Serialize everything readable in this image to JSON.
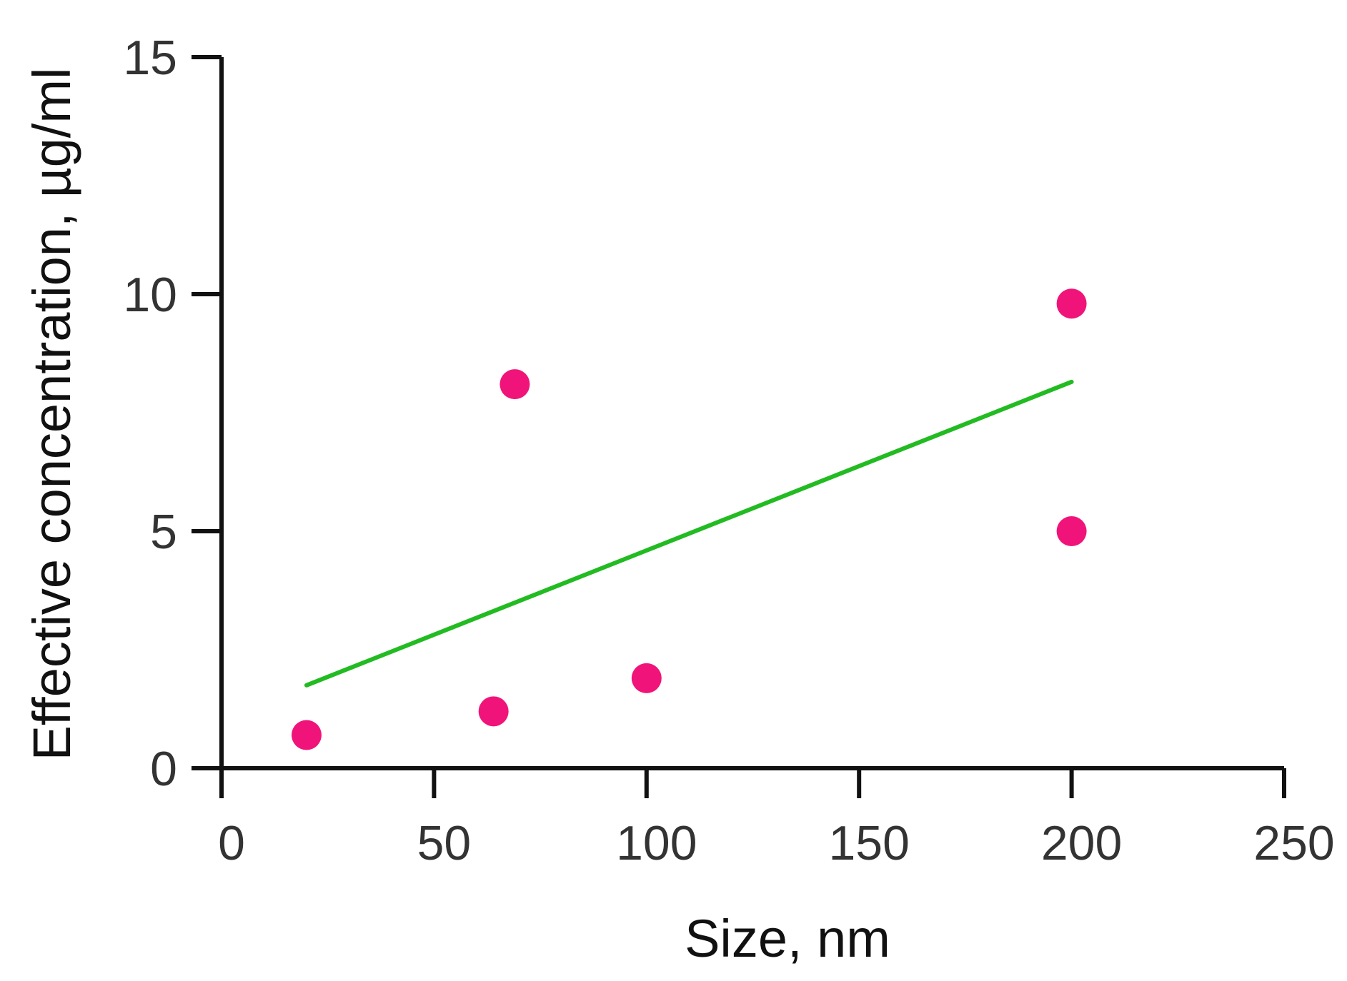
{
  "chart_data": {
    "type": "scatter",
    "title": "",
    "xlabel": "Size, nm",
    "ylabel": "Effective concentration, µg/ml",
    "xlim": [
      0,
      250
    ],
    "ylim": [
      0,
      15
    ],
    "xticks": [
      0,
      50,
      100,
      150,
      200,
      250
    ],
    "yticks": [
      0,
      5,
      10,
      15
    ],
    "grid": false,
    "legend": "none",
    "series": [
      {
        "type": "scatter",
        "color": "#f0147a",
        "points": [
          {
            "x": 20,
            "y": 0.7
          },
          {
            "x": 64,
            "y": 1.2
          },
          {
            "x": 69,
            "y": 8.1
          },
          {
            "x": 100,
            "y": 1.9
          },
          {
            "x": 200,
            "y": 9.8
          },
          {
            "x": 200,
            "y": 5.0
          }
        ]
      },
      {
        "type": "line",
        "color": "#22bb22",
        "points": [
          {
            "x": 20,
            "y": 1.75
          },
          {
            "x": 200,
            "y": 8.15
          }
        ]
      }
    ]
  }
}
